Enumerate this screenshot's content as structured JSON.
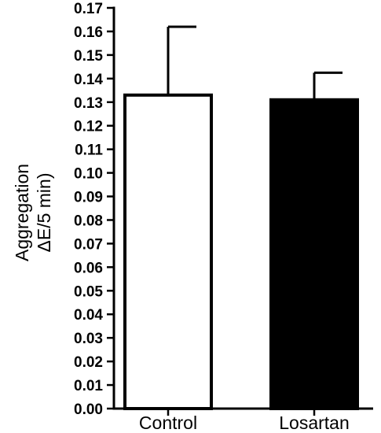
{
  "chart_data": {
    "type": "bar",
    "categories": [
      "Control",
      "Losartan"
    ],
    "values": [
      0.133,
      0.131
    ],
    "errors": [
      0.029,
      0.0115
    ],
    "bar_colors": [
      "#ffffff",
      "#000000"
    ],
    "ylabel_lines": [
      "Aggregation",
      "ΔE/5 min)"
    ],
    "xlabel": "",
    "title": "",
    "ylim": [
      0,
      0.17
    ],
    "ytick_step": 0.01,
    "ytick_decimals": 2,
    "grid": false,
    "legend": false
  }
}
